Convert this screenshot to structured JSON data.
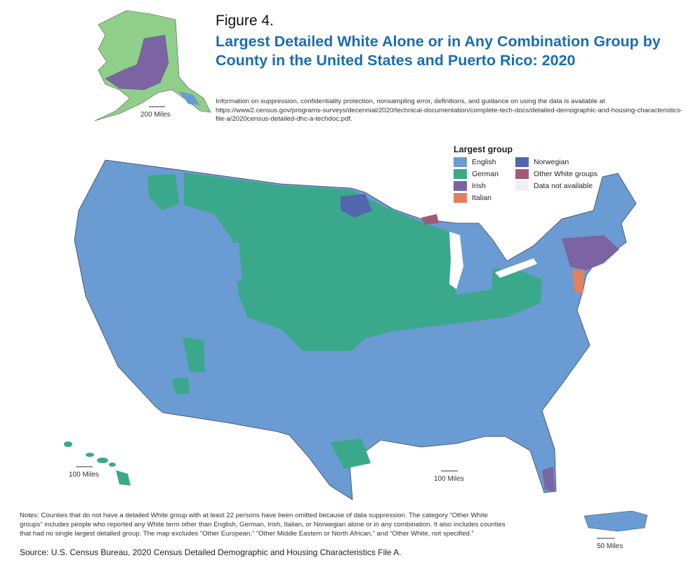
{
  "figure_label": "Figure 4.",
  "title": "Largest Detailed White Alone or in Any Combination Group by County in the United States and Puerto Rico: 2020",
  "info": "Information on suppression, confidentiality protection, nonsampling error, definitions, and guidance on using the data is available at https://www2.census.gov/programs-surveys/decennial/2020/technical-documentation/complete-tech-docs/detailed-demographic-and-housing-characteristics-file-a/2020census-detailed-dhc-a-techdoc.pdf.",
  "legend": {
    "title": "Largest group",
    "items": [
      {
        "label": "English",
        "color": "#6a9bd2"
      },
      {
        "label": "Norwegian",
        "color": "#5266b0"
      },
      {
        "label": "German",
        "color": "#3aa98b"
      },
      {
        "label": "Other White groups",
        "color": "#a05a78"
      },
      {
        "label": "Irish",
        "color": "#7c64a2"
      },
      {
        "label": "Data not available",
        "color": "#f0f0f0"
      },
      {
        "label": "Italian",
        "color": "#e2815f"
      }
    ]
  },
  "scales": {
    "alaska": "200 Miles",
    "hawaii": "100 Miles",
    "conus": "100 Miles",
    "puerto_rico": "50 Miles"
  },
  "notes": "Notes: Counties that do not have a detailed White group with at least 22 persons have been omitted because of data suppression. The category “Other White groups” includes people who reported any White term other than English, German, Irish, Italian, or Norwegian alone or in any combination. It also includes counties that had no single largest detailed group. The map excludes “Other European,” “Other Middle Eastern or North African,” and “Other White, not specified.”",
  "source": "Source: U.S. Census Bureau, 2020 Census Detailed Demographic and Housing Characteristics File A."
}
